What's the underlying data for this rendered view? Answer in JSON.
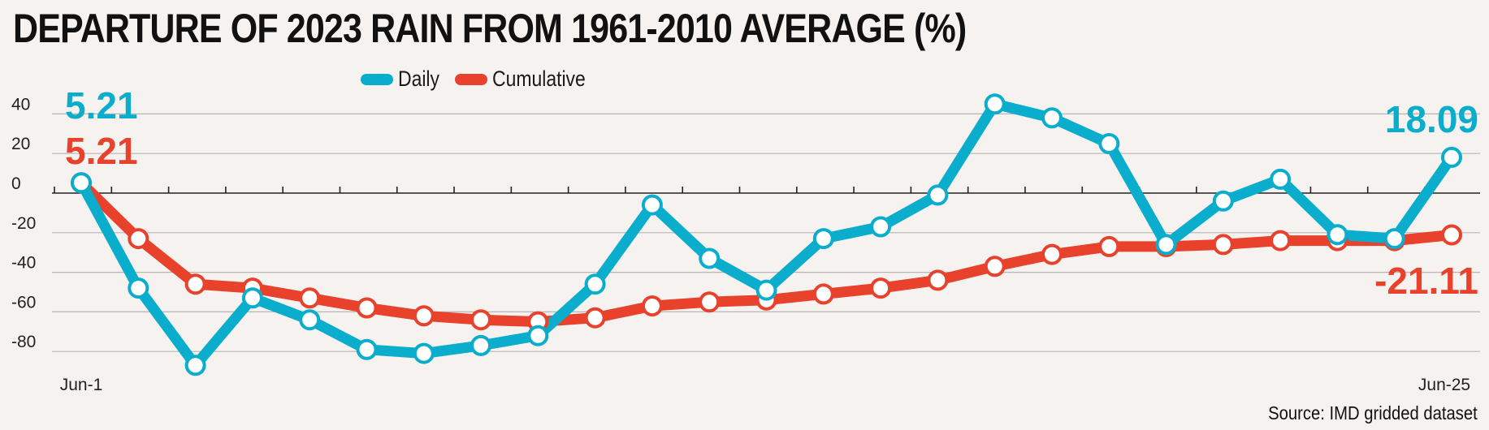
{
  "chart_data": {
    "type": "line",
    "title": "DEPARTURE OF 2023 RAIN FROM 1961-2010 AVERAGE (%)",
    "x_labels": [
      "Jun-1",
      "Jun-25"
    ],
    "y_ticks": [
      40,
      20,
      0,
      -20,
      -40,
      -60,
      -80
    ],
    "ylim": [
      -90,
      50
    ],
    "grid": true,
    "legend_position": "top",
    "series": [
      {
        "name": "Daily",
        "color": "#0aaecc",
        "values": [
          5.21,
          -48,
          -87,
          -53,
          -64,
          -79,
          -81,
          -77,
          -72,
          -46,
          -6,
          -33,
          -49,
          -23,
          -17,
          -1,
          45,
          38,
          25,
          -26,
          -4,
          7,
          -21,
          -23,
          18.09
        ]
      },
      {
        "name": "Cumulative",
        "color": "#e8412c",
        "values": [
          5.21,
          -23,
          -46,
          -48,
          -53,
          -58,
          -62,
          -64,
          -65,
          -63,
          -57,
          -55,
          -54,
          -51,
          -48,
          -44,
          -37,
          -31,
          -27,
          -27,
          -26,
          -24,
          -24,
          -24,
          -21.11
        ]
      }
    ],
    "annotations": {
      "daily_start": "5.21",
      "cumulative_start": "5.21",
      "daily_end": "18.09",
      "cumulative_end": "-21.11"
    }
  },
  "source": "Source: IMD gridded dataset"
}
